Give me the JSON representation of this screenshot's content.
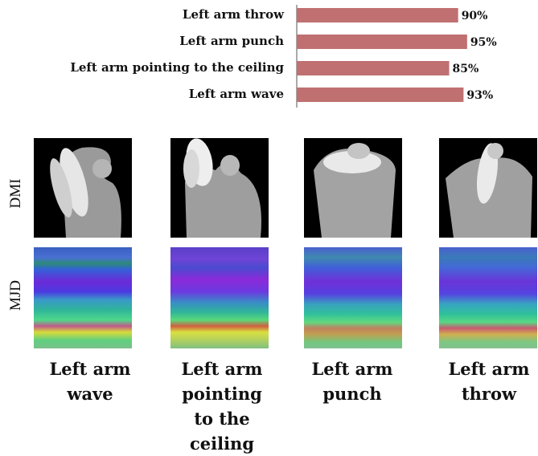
{
  "chart_data": {
    "type": "bar",
    "orientation": "horizontal",
    "categories": [
      "Left arm throw",
      "Left arm punch",
      "Left arm pointing to the ceiling",
      "Left arm wave"
    ],
    "values": [
      90,
      95,
      85,
      93
    ],
    "value_labels": [
      "90%",
      "95%",
      "85%",
      "93%"
    ],
    "bar_color": "#c07070",
    "xlim": [
      0,
      100
    ],
    "grid": false,
    "legend": "none"
  },
  "figure": {
    "row_labels": [
      "DMI",
      "MJD"
    ],
    "captions": [
      [
        "Left arm",
        "wave"
      ],
      [
        "Left arm",
        "pointing",
        "to the",
        "ceiling"
      ],
      [
        "Left arm",
        "punch"
      ],
      [
        "Left arm",
        "throw"
      ]
    ]
  }
}
